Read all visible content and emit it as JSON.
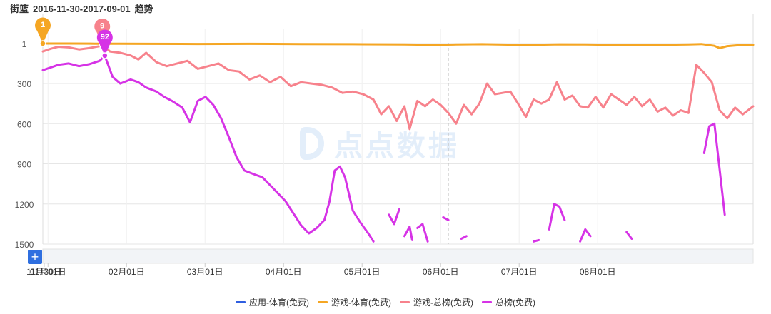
{
  "header": {
    "app": "街篮",
    "range": "2016-11-30-2017-09-01",
    "suffix": "趋势"
  },
  "watermark": {
    "text": "点点数据"
  },
  "controls": {
    "add_label": "+"
  },
  "chart_data": {
    "type": "line",
    "y_inverted": true,
    "ylim": [
      1,
      1500
    ],
    "y_ticks": [
      1,
      300,
      600,
      900,
      1200,
      1500
    ],
    "x_tick_labels": [
      "11月30日",
      "01月01日",
      "02月01日",
      "03月01日",
      "04月01日",
      "05月01日",
      "06月01日",
      "07月01日",
      "08月01日"
    ],
    "x_days": 275,
    "markers": [
      {
        "label": "1",
        "series": "游戏-体育(免费)",
        "day": 0,
        "rank": 1,
        "color": "#f5a623"
      },
      {
        "label": "9",
        "series": "游戏-总榜(免费)",
        "day": 23,
        "rank": 9,
        "color": "#f7828c"
      },
      {
        "label": "92",
        "series": "总榜(免费)",
        "day": 24,
        "rank": 92,
        "color": "#d633e6"
      }
    ],
    "series": [
      {
        "name": "应用-体育(免费)",
        "color": "#2f5ee0",
        "points": []
      },
      {
        "name": "游戏-体育(免费)",
        "color": "#f5a623",
        "points": [
          [
            0,
            1
          ],
          [
            10,
            1
          ],
          [
            20,
            2
          ],
          [
            30,
            2
          ],
          [
            40,
            3
          ],
          [
            60,
            4
          ],
          [
            80,
            3
          ],
          [
            100,
            5
          ],
          [
            120,
            6
          ],
          [
            140,
            8
          ],
          [
            150,
            10
          ],
          [
            160,
            8
          ],
          [
            170,
            6
          ],
          [
            180,
            9
          ],
          [
            190,
            10
          ],
          [
            200,
            7
          ],
          [
            210,
            8
          ],
          [
            220,
            10
          ],
          [
            230,
            12
          ],
          [
            240,
            10
          ],
          [
            250,
            8
          ],
          [
            255,
            5
          ],
          [
            260,
            18
          ],
          [
            262,
            35
          ],
          [
            265,
            20
          ],
          [
            270,
            12
          ],
          [
            275,
            10
          ]
        ]
      },
      {
        "name": "游戏-总榜(免费)",
        "color": "#f7828c",
        "points": [
          [
            0,
            60
          ],
          [
            3,
            40
          ],
          [
            6,
            25
          ],
          [
            10,
            30
          ],
          [
            14,
            45
          ],
          [
            18,
            35
          ],
          [
            22,
            20
          ],
          [
            23,
            9
          ],
          [
            26,
            60
          ],
          [
            30,
            70
          ],
          [
            34,
            90
          ],
          [
            37,
            120
          ],
          [
            40,
            70
          ],
          [
            44,
            140
          ],
          [
            48,
            170
          ],
          [
            52,
            150
          ],
          [
            56,
            130
          ],
          [
            60,
            190
          ],
          [
            64,
            170
          ],
          [
            68,
            150
          ],
          [
            72,
            200
          ],
          [
            76,
            210
          ],
          [
            80,
            270
          ],
          [
            84,
            240
          ],
          [
            88,
            290
          ],
          [
            92,
            250
          ],
          [
            96,
            320
          ],
          [
            100,
            290
          ],
          [
            104,
            300
          ],
          [
            108,
            310
          ],
          [
            112,
            330
          ],
          [
            116,
            370
          ],
          [
            120,
            360
          ],
          [
            124,
            380
          ],
          [
            128,
            420
          ],
          [
            131,
            530
          ],
          [
            134,
            470
          ],
          [
            137,
            580
          ],
          [
            140,
            470
          ],
          [
            142,
            640
          ],
          [
            145,
            430
          ],
          [
            148,
            470
          ],
          [
            151,
            420
          ],
          [
            154,
            460
          ],
          [
            157,
            520
          ],
          [
            160,
            600
          ],
          [
            163,
            460
          ],
          [
            166,
            530
          ],
          [
            169,
            450
          ],
          [
            172,
            300
          ],
          [
            175,
            380
          ],
          [
            178,
            370
          ],
          [
            181,
            360
          ],
          [
            184,
            450
          ],
          [
            187,
            550
          ],
          [
            190,
            420
          ],
          [
            193,
            450
          ],
          [
            196,
            420
          ],
          [
            199,
            290
          ],
          [
            202,
            420
          ],
          [
            205,
            390
          ],
          [
            208,
            470
          ],
          [
            211,
            480
          ],
          [
            214,
            400
          ],
          [
            217,
            480
          ],
          [
            220,
            380
          ],
          [
            223,
            420
          ],
          [
            226,
            460
          ],
          [
            229,
            400
          ],
          [
            232,
            470
          ],
          [
            235,
            420
          ],
          [
            238,
            510
          ],
          [
            241,
            480
          ],
          [
            244,
            540
          ],
          [
            247,
            500
          ],
          [
            250,
            520
          ],
          [
            253,
            160
          ],
          [
            256,
            220
          ],
          [
            259,
            290
          ],
          [
            262,
            500
          ],
          [
            265,
            560
          ],
          [
            268,
            480
          ],
          [
            271,
            530
          ],
          [
            275,
            470
          ]
        ]
      },
      {
        "name": "总榜(免费)",
        "color": "#d633e6",
        "segments": [
          [
            [
              0,
              200
            ],
            [
              3,
              180
            ],
            [
              6,
              160
            ],
            [
              10,
              150
            ],
            [
              14,
              170
            ],
            [
              18,
              155
            ],
            [
              22,
              130
            ],
            [
              24,
              92
            ],
            [
              27,
              250
            ],
            [
              30,
              300
            ],
            [
              34,
              270
            ],
            [
              37,
              290
            ],
            [
              40,
              330
            ],
            [
              44,
              360
            ],
            [
              47,
              400
            ],
            [
              50,
              430
            ],
            [
              54,
              480
            ],
            [
              57,
              590
            ],
            [
              60,
              430
            ],
            [
              63,
              400
            ],
            [
              66,
              460
            ],
            [
              69,
              560
            ],
            [
              72,
              700
            ],
            [
              75,
              850
            ],
            [
              78,
              950
            ],
            [
              82,
              980
            ],
            [
              85,
              1000
            ],
            [
              88,
              1060
            ],
            [
              91,
              1120
            ],
            [
              94,
              1180
            ],
            [
              96,
              1240
            ],
            [
              98,
              1300
            ],
            [
              100,
              1360
            ],
            [
              103,
              1420
            ],
            [
              106,
              1380
            ],
            [
              109,
              1320
            ],
            [
              111,
              1180
            ],
            [
              113,
              950
            ],
            [
              115,
              920
            ],
            [
              117,
              1000
            ],
            [
              120,
              1250
            ],
            [
              123,
              1340
            ],
            [
              126,
              1420
            ],
            [
              128,
              1480
            ]
          ],
          [
            [
              134,
              1280
            ],
            [
              136,
              1350
            ],
            [
              138,
              1240
            ]
          ],
          [
            [
              140,
              1440
            ],
            [
              142,
              1370
            ],
            [
              143,
              1470
            ]
          ],
          [
            [
              145,
              1380
            ],
            [
              147,
              1350
            ],
            [
              149,
              1480
            ]
          ],
          [
            [
              155,
              1300
            ],
            [
              157,
              1320
            ]
          ],
          [
            [
              162,
              1460
            ],
            [
              164,
              1440
            ]
          ],
          [
            [
              190,
              1480
            ],
            [
              192,
              1470
            ]
          ],
          [
            [
              196,
              1390
            ],
            [
              198,
              1200
            ],
            [
              200,
              1220
            ],
            [
              202,
              1320
            ]
          ],
          [
            [
              208,
              1480
            ],
            [
              210,
              1390
            ],
            [
              212,
              1440
            ]
          ],
          [
            [
              226,
              1410
            ],
            [
              228,
              1460
            ]
          ],
          [
            [
              256,
              820
            ],
            [
              258,
              620
            ],
            [
              260,
              600
            ],
            [
              262,
              940
            ],
            [
              264,
              1280
            ]
          ]
        ]
      }
    ]
  }
}
